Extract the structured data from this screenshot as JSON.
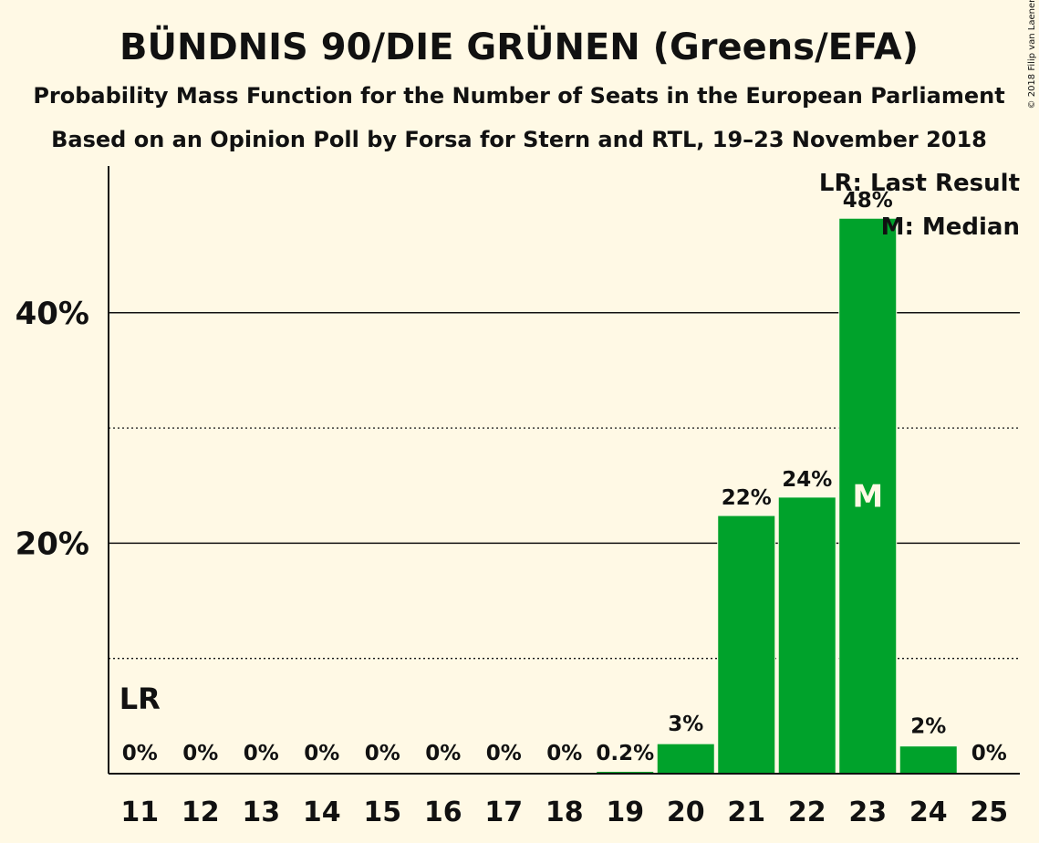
{
  "chart_data": {
    "type": "bar",
    "title": "BÜNDNIS 90/DIE GRÜNEN (Greens/EFA)",
    "subtitle": "Probability Mass Function for the Number of Seats in the European Parliament",
    "subtitle2": "Based on an Opinion Poll by Forsa for Stern and RTL, 19–23 November 2018",
    "copyright": "© 2018 Filip van Laenen",
    "categories": [
      "11",
      "12",
      "13",
      "14",
      "15",
      "16",
      "17",
      "18",
      "19",
      "20",
      "21",
      "22",
      "23",
      "24",
      "25"
    ],
    "values": [
      0,
      0,
      0,
      0,
      0,
      0,
      0,
      0,
      0.2,
      2.6,
      22.4,
      24.0,
      48.2,
      2.4,
      0
    ],
    "value_labels": [
      "0%",
      "0%",
      "0%",
      "0%",
      "0%",
      "0%",
      "0%",
      "0%",
      "0.2%",
      "3%",
      "22%",
      "24%",
      "48%",
      "2%",
      "0%"
    ],
    "ylim": [
      0,
      52
    ],
    "yticks": [
      {
        "value": 20,
        "label": "20%"
      },
      {
        "value": 40,
        "label": "40%"
      }
    ],
    "minor_gridlines": [
      10,
      30
    ],
    "bar_color": "#00A22B",
    "last_result_category": "11",
    "last_result_marker": "LR",
    "median_category": "23",
    "median_marker": "M",
    "legend": {
      "position": "top-right",
      "items": [
        "LR: Last Result",
        "M: Median"
      ]
    }
  }
}
